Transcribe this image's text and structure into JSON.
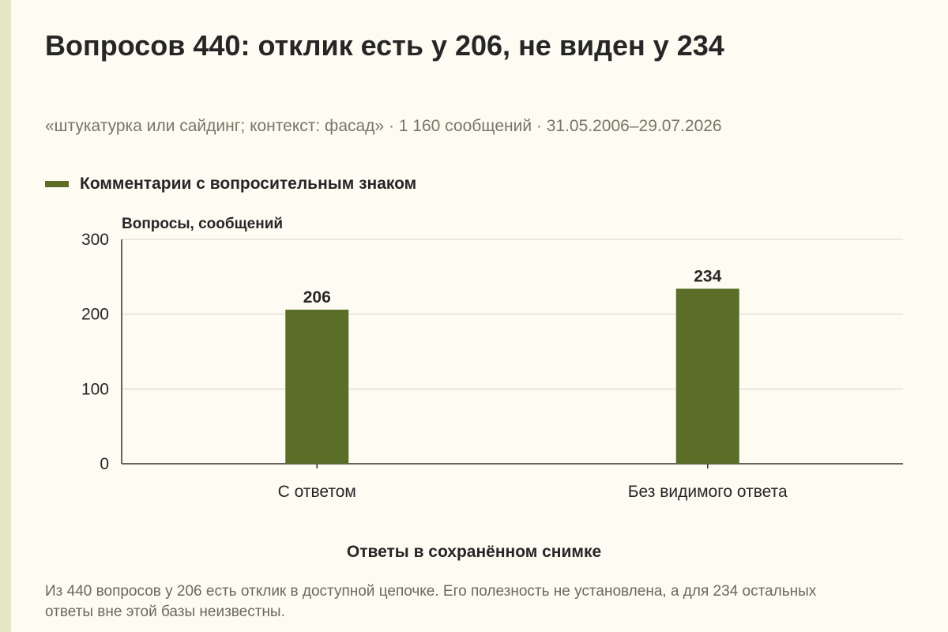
{
  "header": {
    "title": "Вопросов 440: отклик есть у 206, не виден у 234",
    "subtitle": "«штукатурка или сайдинг; контекст: фасад» · 1 160 сообщений · 31.05.2006–29.07.2026"
  },
  "legend": {
    "label": "Комментарии с вопросительным знаком"
  },
  "note": "Из 440 вопросов у 206 есть отклик в доступной цепочке. Его полезность не установлена, а для 234 остальных ответы вне этой базы неизвестны.",
  "colors": {
    "bar": "#5a6e28",
    "background": "#fdfbf2",
    "grid": "#d6d6d0",
    "text": "#262626"
  },
  "chart_data": {
    "type": "bar",
    "categories": [
      "С ответом",
      "Без видимого ответа"
    ],
    "series": [
      {
        "name": "Комментарии с вопросительным знаком",
        "values": [
          206,
          234
        ]
      }
    ],
    "data_labels": [
      "206",
      "234"
    ],
    "ylabel": "Вопросы, сообщений",
    "xlabel": "Ответы в сохранённом снимке",
    "ylim": [
      0,
      300
    ],
    "yticks": [
      0,
      100,
      200,
      300
    ],
    "grid": true,
    "legend_position": "top-left"
  }
}
